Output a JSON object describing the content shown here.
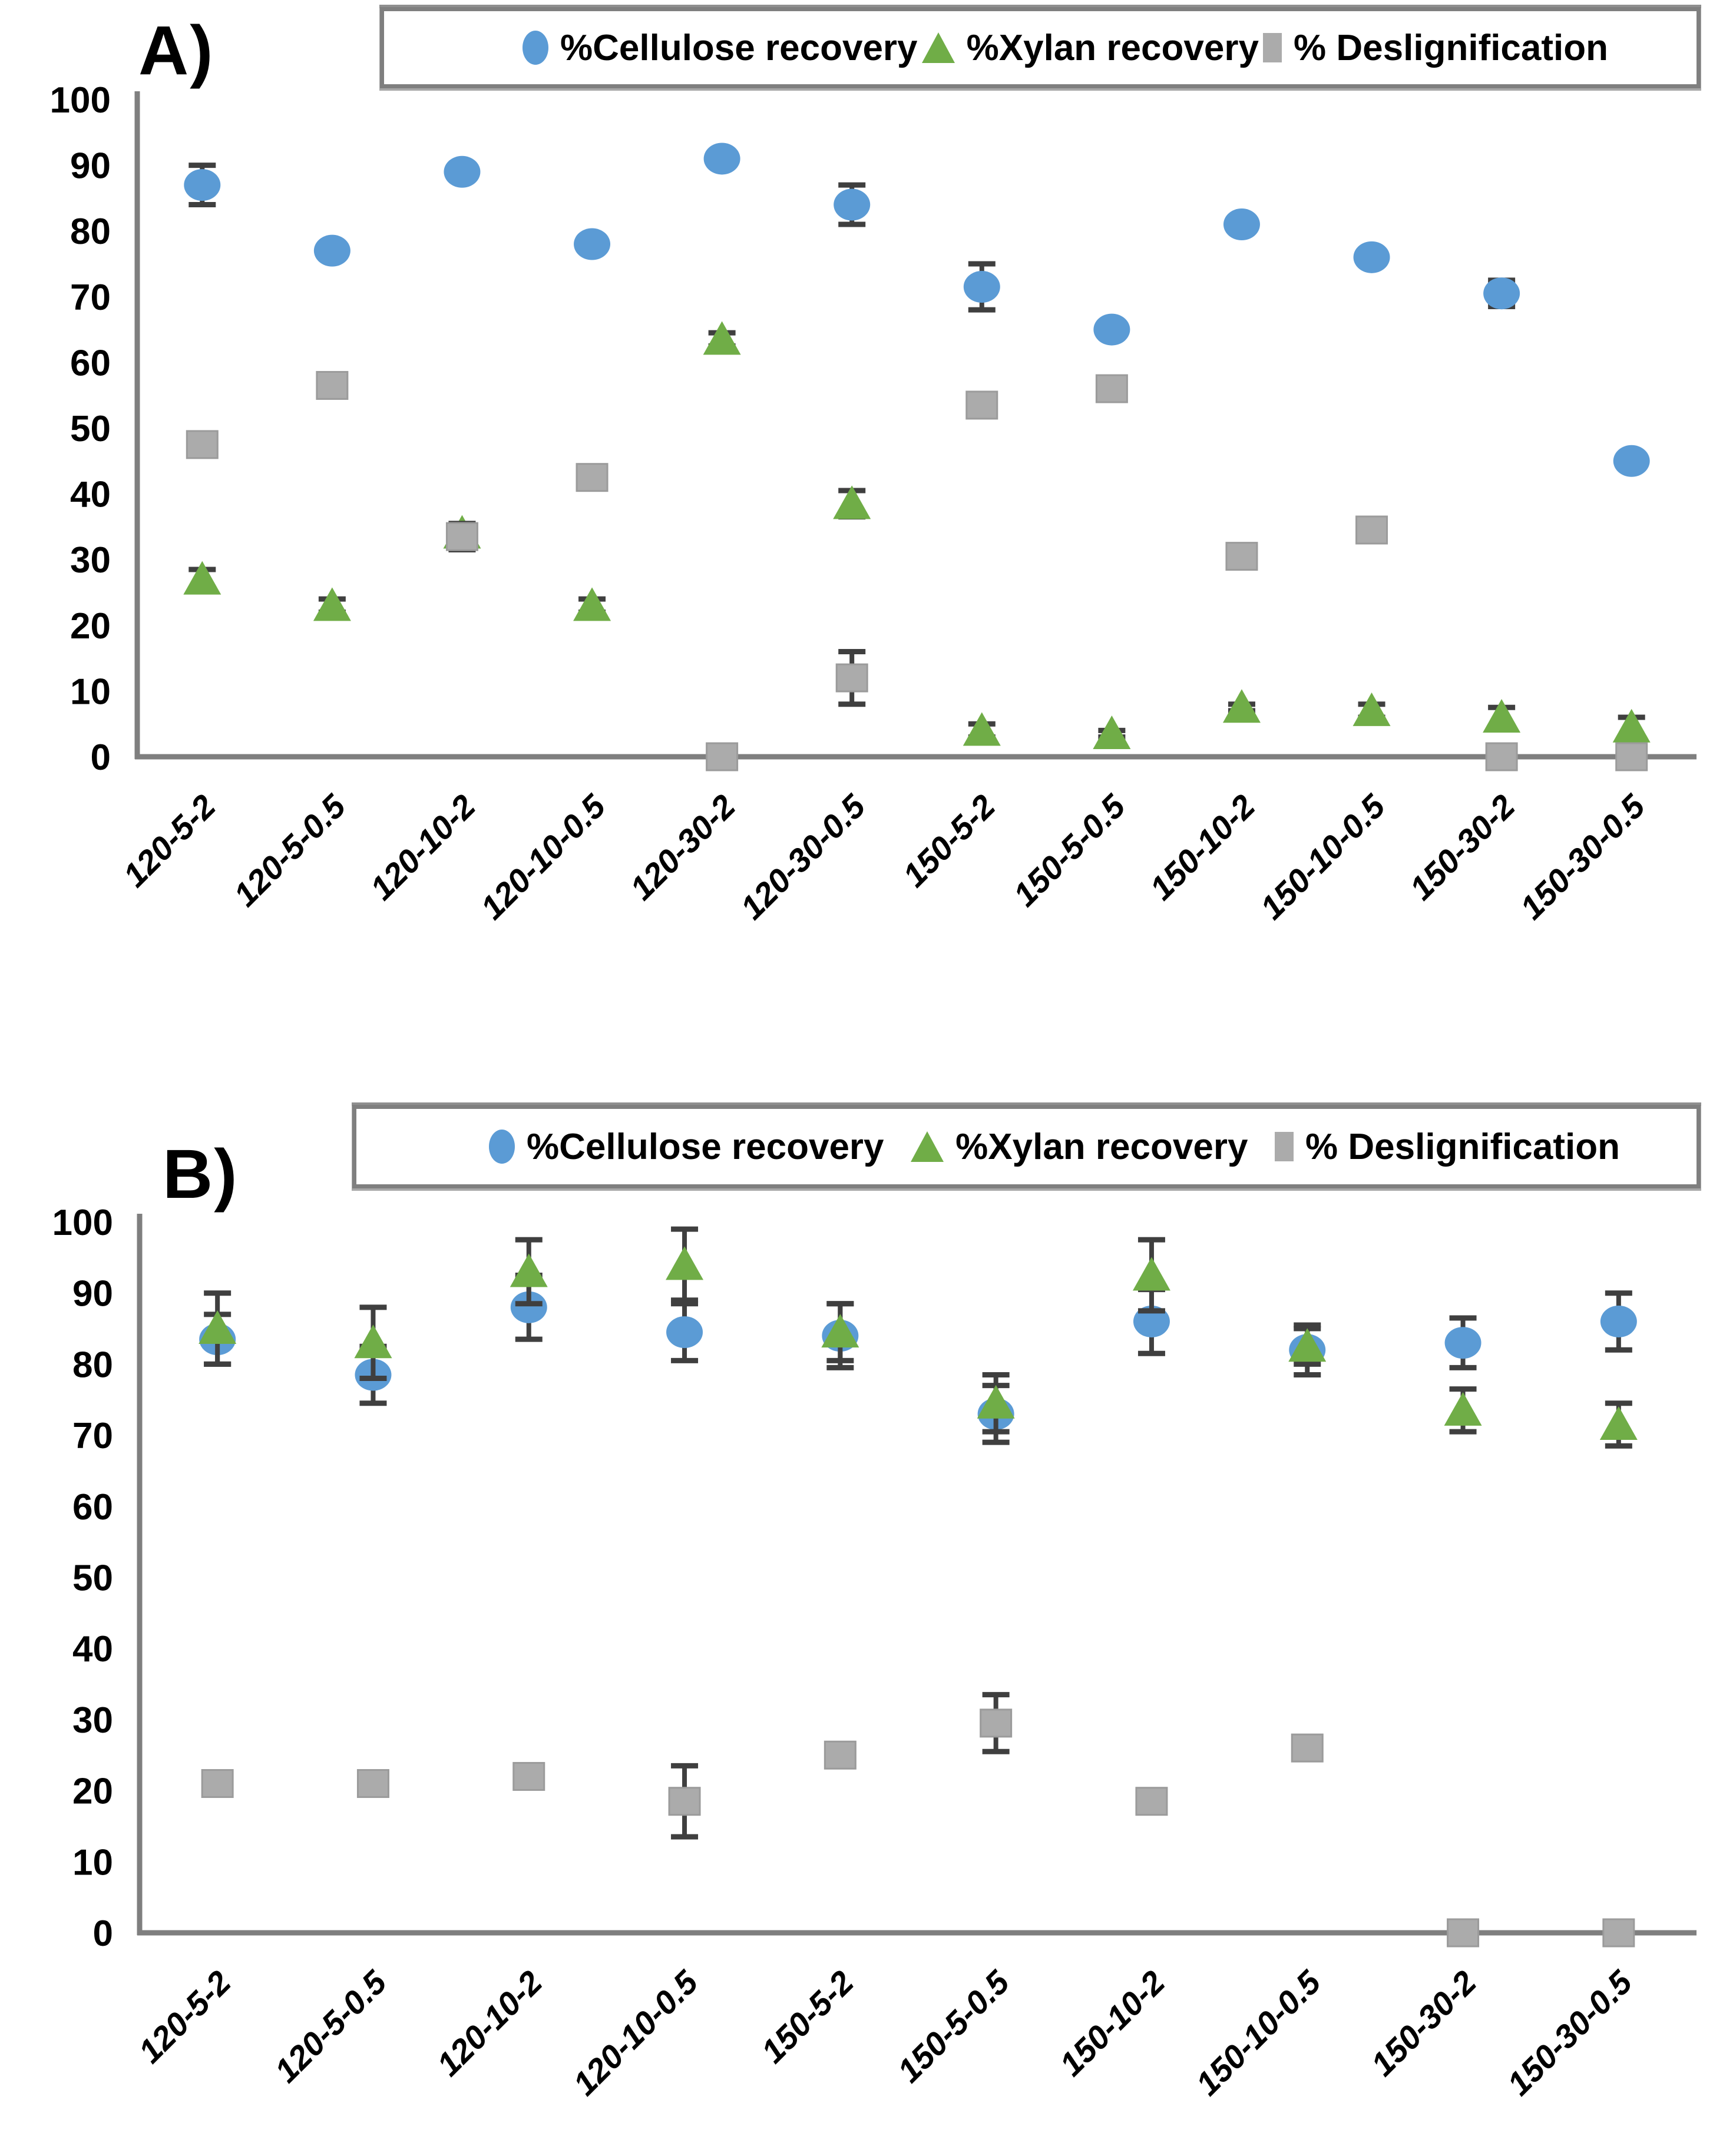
{
  "figure": {
    "background": "#FFFFFF",
    "axis_color": "#7F7F7F",
    "error_bar_color": "#3F3F3F",
    "text_color": "#000000"
  },
  "chart_data": [
    {
      "type": "scatter",
      "panel_label": "A)",
      "ylim": [
        0,
        100
      ],
      "ytick_step": 10,
      "grid": false,
      "legend_position": "top",
      "categories": [
        "120-5-2",
        "120-5-0.5",
        "120-10-2",
        "120-10-0.5",
        "120-30-2",
        "120-30-0.5",
        "150-5-2",
        "150-5-0.5",
        "150-10-2",
        "150-10-0.5",
        "150-30-2",
        "150-30-0.5"
      ],
      "series": [
        {
          "name": "%Cellulose recovery",
          "marker": "circle",
          "color": "#5B9BD5",
          "values": [
            87,
            77,
            89,
            78,
            91,
            84,
            71.5,
            65,
            81,
            76,
            70.5,
            45
          ],
          "errors": [
            3,
            0,
            0,
            0,
            0,
            3,
            3.5,
            0,
            0,
            0,
            2,
            0
          ]
        },
        {
          "name": "%Xylan recovery",
          "marker": "triangle",
          "color": "#70AD47",
          "values": [
            27,
            23,
            34,
            23,
            63.5,
            38.5,
            4,
            3.5,
            7.5,
            7,
            6,
            4.5
          ],
          "errors": [
            1.5,
            1,
            0,
            1,
            1,
            2,
            1,
            0.5,
            0.5,
            1,
            1.5,
            1.5
          ]
        },
        {
          "name": "% Deslignification",
          "marker": "square",
          "color": "#ABABAB",
          "values": [
            47.5,
            56.5,
            33.5,
            42.5,
            0,
            12,
            53.5,
            56,
            30.5,
            34.5,
            0,
            0
          ],
          "errors": [
            1.5,
            0,
            2,
            0,
            0,
            4,
            1.5,
            0,
            0,
            0,
            0,
            0
          ]
        }
      ]
    },
    {
      "type": "scatter",
      "panel_label": "B)",
      "ylim": [
        0,
        100
      ],
      "ytick_step": 10,
      "grid": false,
      "legend_position": "top",
      "categories": [
        "120-5-2",
        "120-5-0.5",
        "120-10-2",
        "120-10-0.5",
        "150-5-2",
        "150-5-0.5",
        "150-10-2",
        "150-10-0.5",
        "150-30-2",
        "150-30-0.5"
      ],
      "series": [
        {
          "name": "%Cellulose recovery",
          "marker": "circle",
          "color": "#5B9BD5",
          "values": [
            83.5,
            78.5,
            88,
            84.5,
            84,
            73,
            86,
            82,
            83,
            86
          ],
          "errors": [
            3.5,
            4,
            4.5,
            4,
            4.5,
            4,
            4.5,
            3.5,
            3.5,
            4
          ]
        },
        {
          "name": "%Xylan recovery",
          "marker": "triangle",
          "color": "#70AD47",
          "values": [
            85,
            83,
            93,
            94,
            84.5,
            74.5,
            92.5,
            82.5,
            73.5,
            71.5
          ],
          "errors": [
            5,
            5,
            4.5,
            5,
            4,
            4,
            5,
            2.5,
            3,
            3
          ]
        },
        {
          "name": "% Deslignification",
          "marker": "square",
          "color": "#ABABAB",
          "values": [
            21,
            21,
            22,
            18.5,
            25,
            29.5,
            18.5,
            26,
            0,
            0
          ],
          "errors": [
            0,
            0,
            0,
            5,
            0,
            4,
            0,
            0,
            0,
            0
          ]
        }
      ]
    }
  ]
}
